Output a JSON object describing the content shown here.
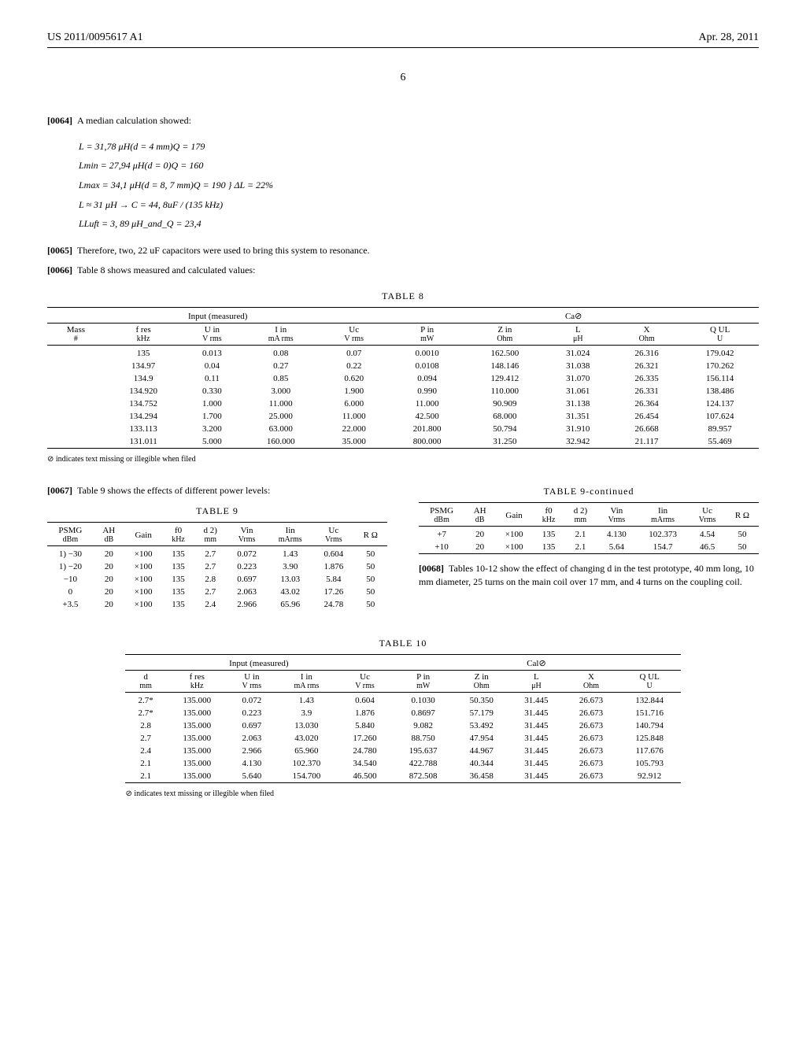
{
  "header": {
    "left": "US 2011/0095617 A1",
    "right": "Apr. 28, 2011"
  },
  "page_number": "6",
  "para_0064": {
    "num": "[0064]",
    "text": "A median calculation showed:"
  },
  "math": {
    "l1": "L = 31,78 μH(d = 4 mm)Q = 179",
    "l2": "Lmin = 27,94 μH(d = 0)Q = 160",
    "l3": "Lmax = 34,1 μH(d = 8, 7 mm)Q = 190",
    "l3b": "} ΔL = 22%",
    "l4": "L ≈ 31 μH → C = 44, 8uF / (135 kHz)",
    "l5": "LLuft = 3, 89 μH_and_Q = 23,4"
  },
  "para_0065": {
    "num": "[0065]",
    "text": "Therefore, two, 22 uF capacitors were used to bring this system to resonance."
  },
  "para_0066": {
    "num": "[0066]",
    "text": "Table 8 shows measured and calculated values:"
  },
  "table8": {
    "title": "TABLE 8",
    "group_headers": [
      "Input (measured)",
      "Ca⊘"
    ],
    "cols": [
      "Mass\n#",
      "f res\nkHz",
      "U in\nV rms",
      "I in\nmA rms",
      "Uc\nV rms",
      "P in\nmW",
      "Z in\nOhm",
      "L\nμH",
      "X\nOhm",
      "Q UL\nU"
    ],
    "rows": [
      [
        "",
        "135",
        "0.013",
        "0.08",
        "0.07",
        "0.0010",
        "162.500",
        "31.024",
        "26.316",
        "179.042"
      ],
      [
        "",
        "134.97",
        "0.04",
        "0.27",
        "0.22",
        "0.0108",
        "148.146",
        "31.038",
        "26.321",
        "170.262"
      ],
      [
        "",
        "134.9",
        "0.11",
        "0.85",
        "0.620",
        "0.094",
        "129.412",
        "31.070",
        "26.335",
        "156.114"
      ],
      [
        "",
        "134.920",
        "0.330",
        "3.000",
        "1.900",
        "0.990",
        "110.000",
        "31.061",
        "26.331",
        "138.486"
      ],
      [
        "",
        "134.752",
        "1.000",
        "11.000",
        "6.000",
        "11.000",
        "90.909",
        "31.138",
        "26.364",
        "124.137"
      ],
      [
        "",
        "134.294",
        "1.700",
        "25.000",
        "11.000",
        "42.500",
        "68.000",
        "31.351",
        "26.454",
        "107.624"
      ],
      [
        "",
        "133.113",
        "3.200",
        "63.000",
        "22.000",
        "201.800",
        "50.794",
        "31.910",
        "26.668",
        "89.957"
      ],
      [
        "",
        "131.011",
        "5.000",
        "160.000",
        "35.000",
        "800.000",
        "31.250",
        "32.942",
        "21.117",
        "55.469"
      ]
    ],
    "footnote": "⊘ indicates text missing or illegible when filed"
  },
  "para_0067": {
    "num": "[0067]",
    "text": "Table 9 shows the effects of different power levels:"
  },
  "table9": {
    "title": "TABLE 9",
    "cols": [
      "PSMG\ndBm",
      "AH\ndB",
      "Gain",
      "f0\nkHz",
      "d 2)\nmm",
      "Vin\nVrms",
      "Iin\nmArms",
      "Uc\nVrms",
      "R Ω"
    ],
    "rows": [
      [
        "1) −30",
        "20",
        "×100",
        "135",
        "2.7",
        "0.072",
        "1.43",
        "0.604",
        "50"
      ],
      [
        "1) −20",
        "20",
        "×100",
        "135",
        "2.7",
        "0.223",
        "3.90",
        "1.876",
        "50"
      ],
      [
        "−10",
        "20",
        "×100",
        "135",
        "2.8",
        "0.697",
        "13.03",
        "5.84",
        "50"
      ],
      [
        "0",
        "20",
        "×100",
        "135",
        "2.7",
        "2.063",
        "43.02",
        "17.26",
        "50"
      ],
      [
        "+3.5",
        "20",
        "×100",
        "135",
        "2.4",
        "2.966",
        "65.96",
        "24.78",
        "50"
      ]
    ]
  },
  "table9c": {
    "title": "TABLE 9-continued",
    "cols": [
      "PSMG\ndBm",
      "AH\ndB",
      "Gain",
      "f0\nkHz",
      "d 2)\nmm",
      "Vin\nVrms",
      "Iin\nmArms",
      "Uc\nVrms",
      "R Ω"
    ],
    "rows": [
      [
        "+7",
        "20",
        "×100",
        "135",
        "2.1",
        "4.130",
        "102.373",
        "4.54",
        "50"
      ],
      [
        "+10",
        "20",
        "×100",
        "135",
        "2.1",
        "5.64",
        "154.7",
        "46.5",
        "50"
      ]
    ]
  },
  "para_0068": {
    "num": "[0068]",
    "text": "Tables 10-12 show the effect of changing d in the test prototype, 40 mm long, 10 mm diameter, 25 turns on the main coil over 17 mm, and 4 turns on the coupling coil."
  },
  "table10": {
    "title": "TABLE 10",
    "group_headers": [
      "Input (measured)",
      "Cal⊘"
    ],
    "cols": [
      "d\nmm",
      "f res\nkHz",
      "U in\nV rms",
      "I in\nmA rms",
      "Uc\nV rms",
      "P in\nmW",
      "Z in\nOhm",
      "L\nμH",
      "X\nOhm",
      "Q UL\nU"
    ],
    "rows": [
      [
        "2.7*",
        "135.000",
        "0.072",
        "1.43",
        "0.604",
        "0.1030",
        "50.350",
        "31.445",
        "26.673",
        "132.844"
      ],
      [
        "2.7*",
        "135.000",
        "0.223",
        "3.9",
        "1.876",
        "0.8697",
        "57.179",
        "31.445",
        "26.673",
        "151.716"
      ],
      [
        "2.8",
        "135.000",
        "0.697",
        "13.030",
        "5.840",
        "9.082",
        "53.492",
        "31.445",
        "26.673",
        "140.794"
      ],
      [
        "2.7",
        "135.000",
        "2.063",
        "43.020",
        "17.260",
        "88.750",
        "47.954",
        "31.445",
        "26.673",
        "125.848"
      ],
      [
        "2.4",
        "135.000",
        "2.966",
        "65.960",
        "24.780",
        "195.637",
        "44.967",
        "31.445",
        "26.673",
        "117.676"
      ],
      [
        "2.1",
        "135.000",
        "4.130",
        "102.370",
        "34.540",
        "422.788",
        "40.344",
        "31.445",
        "26.673",
        "105.793"
      ],
      [
        "2.1",
        "135.000",
        "5.640",
        "154.700",
        "46.500",
        "872.508",
        "36.458",
        "31.445",
        "26.673",
        "92.912"
      ]
    ],
    "footnote": "⊘ indicates text missing or illegible when filed"
  }
}
